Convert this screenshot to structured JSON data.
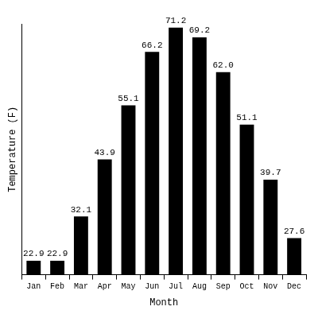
{
  "chart_data": {
    "type": "bar",
    "x_label": "Month",
    "y_label": "Temperature (F)",
    "categories": [
      "Jan",
      "Feb",
      "Mar",
      "Apr",
      "May",
      "Jun",
      "Jul",
      "Aug",
      "Sep",
      "Oct",
      "Nov",
      "Dec"
    ],
    "values": [
      22.9,
      22.9,
      32.1,
      43.9,
      55.1,
      66.2,
      71.2,
      69.2,
      62.0,
      51.1,
      39.7,
      27.6
    ],
    "value_labels": [
      "22.9",
      "22.9",
      "32.1",
      "43.9",
      "55.1",
      "66.2",
      "71.2",
      "69.2",
      "62.0",
      "51.1",
      "39.7",
      "27.6"
    ],
    "color": "#000000",
    "ylim": [
      20,
      72
    ],
    "grid": false,
    "data_labels": true,
    "tick_labels": "x"
  }
}
